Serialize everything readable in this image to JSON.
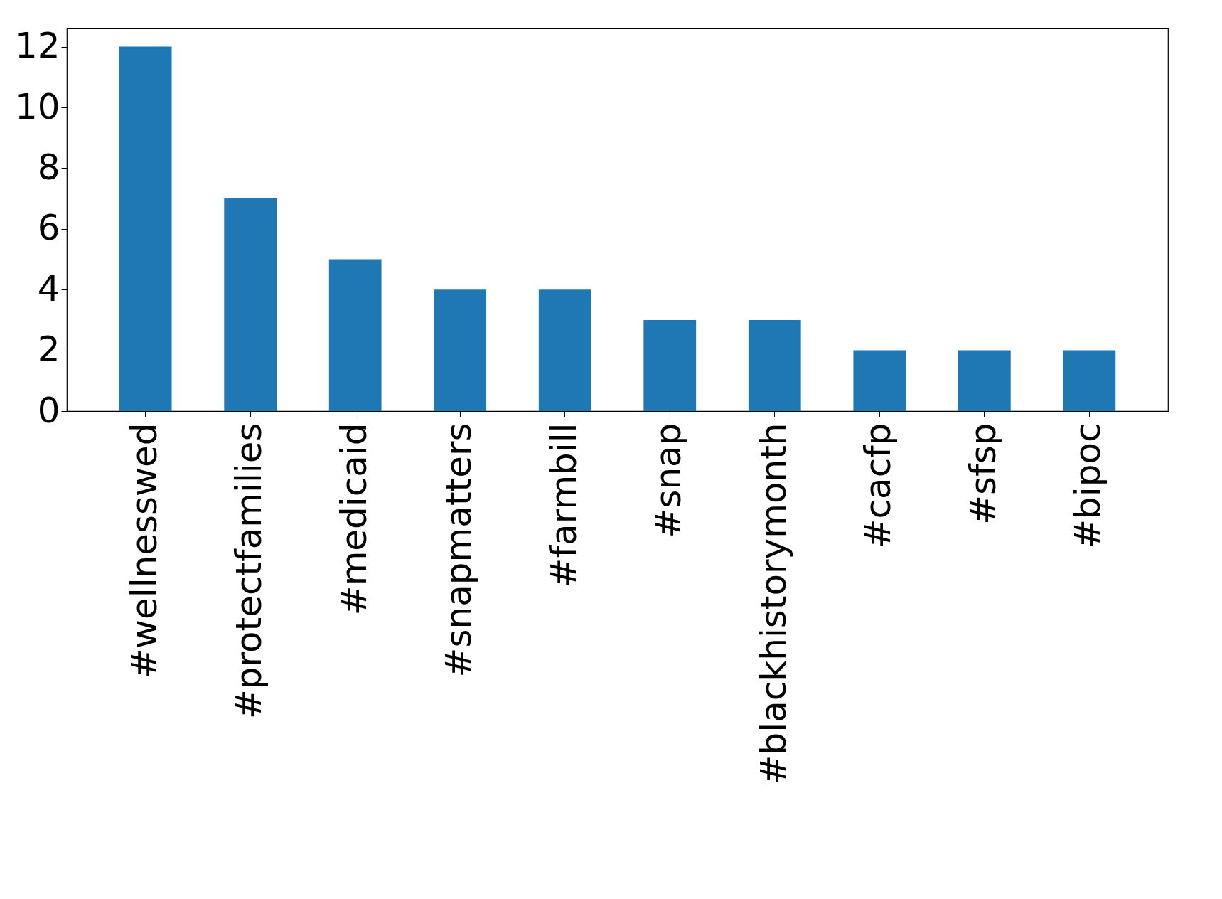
{
  "chart_data": {
    "type": "bar",
    "categories": [
      "#wellnesswed",
      "#protectfamilies",
      "#medicaid",
      "#snapmatters",
      "#farmbill",
      "#snap",
      "#blackhistorymonth",
      "#cacfp",
      "#sfsp",
      "#bipoc"
    ],
    "values": [
      12,
      7,
      5,
      4,
      4,
      3,
      3,
      2,
      2,
      2
    ],
    "color": "#1f77b4",
    "ylim": [
      0,
      12.6
    ],
    "yticks": [
      0,
      2,
      4,
      6,
      8,
      10,
      12
    ],
    "grid": false
  }
}
